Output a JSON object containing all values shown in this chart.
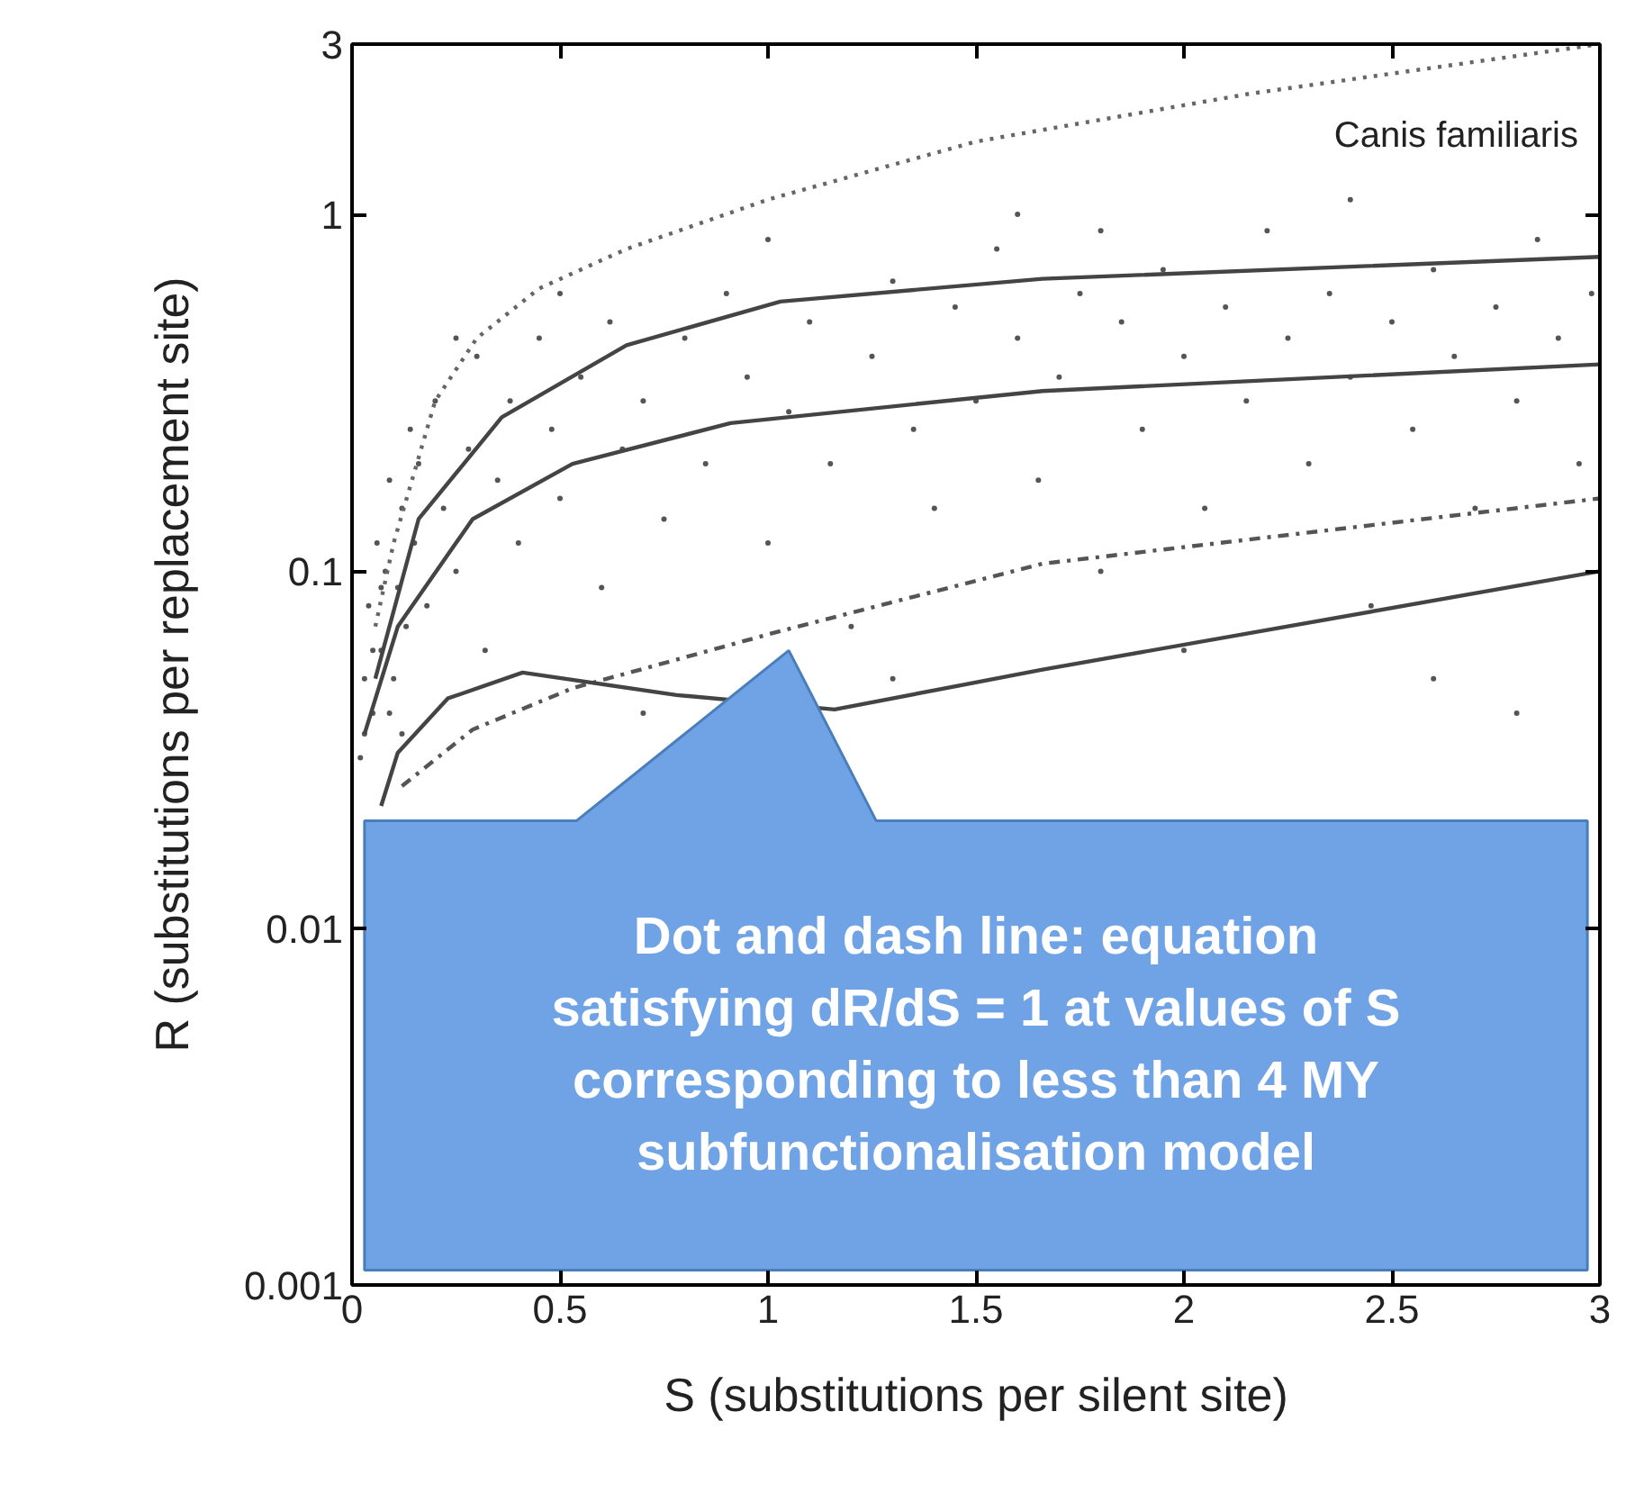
{
  "chart_data": {
    "type": "line",
    "xlabel": "S (substitutions per silent site)",
    "ylabel": "R (substitutions per replacement site)",
    "xlim": [
      0,
      3
    ],
    "ylim": [
      0.001,
      3
    ],
    "xticks": [
      0,
      0.5,
      1,
      1.5,
      2,
      2.5,
      3
    ],
    "yticks": [
      0.001,
      0.01,
      0.1,
      1,
      3
    ],
    "log": "y",
    "grid": false,
    "annotations": [
      "Canis familiaris",
      "Dot and dash line: equation satisfying dR/dS = 1 at values of S corresponding to less than 4 MY subfunctionalisation model"
    ],
    "series": [
      {
        "type": "scatter",
        "marker": "circle",
        "color": "#555555",
        "x": [
          0.02,
          0.03,
          0.04,
          0.05,
          0.06,
          0.07,
          0.08,
          0.09,
          0.1,
          0.11,
          0.12,
          0.13,
          0.14,
          0.15,
          0.03,
          0.05,
          0.07,
          0.09,
          0.12,
          0.16,
          0.18,
          0.2,
          0.22,
          0.25,
          0.28,
          0.3,
          0.32,
          0.35,
          0.38,
          0.4,
          0.45,
          0.48,
          0.5,
          0.55,
          0.6,
          0.62,
          0.65,
          0.7,
          0.75,
          0.8,
          0.85,
          0.9,
          0.95,
          1.0,
          1.05,
          1.1,
          1.15,
          1.2,
          1.25,
          1.3,
          1.35,
          1.4,
          1.45,
          1.5,
          1.55,
          1.6,
          1.65,
          1.7,
          1.75,
          1.8,
          1.85,
          1.9,
          1.95,
          2.0,
          2.05,
          2.1,
          2.15,
          2.2,
          2.25,
          2.3,
          2.35,
          2.4,
          2.45,
          2.5,
          2.55,
          2.6,
          2.65,
          2.7,
          2.75,
          2.8,
          2.85,
          2.9,
          2.95,
          2.98,
          1.3,
          2.0,
          2.6,
          0.7,
          1.8,
          1.0,
          0.5,
          0.25,
          2.4,
          1.6,
          2.8
        ],
        "values": [
          0.03,
          0.05,
          0.08,
          0.04,
          0.12,
          0.06,
          0.1,
          0.18,
          0.05,
          0.09,
          0.15,
          0.07,
          0.25,
          0.12,
          0.035,
          0.06,
          0.09,
          0.04,
          0.035,
          0.2,
          0.08,
          0.3,
          0.15,
          0.1,
          0.22,
          0.4,
          0.06,
          0.18,
          0.3,
          0.12,
          0.45,
          0.25,
          0.16,
          0.35,
          0.09,
          0.5,
          0.22,
          0.3,
          0.14,
          0.45,
          0.2,
          0.6,
          0.35,
          0.12,
          0.28,
          0.5,
          0.2,
          0.07,
          0.4,
          0.65,
          0.25,
          0.15,
          0.55,
          0.3,
          0.8,
          0.45,
          0.18,
          0.35,
          0.6,
          0.1,
          0.5,
          0.25,
          0.7,
          0.4,
          0.15,
          0.55,
          0.3,
          0.9,
          0.45,
          0.2,
          0.6,
          0.35,
          0.08,
          0.5,
          0.25,
          0.7,
          0.4,
          0.15,
          0.55,
          0.3,
          0.85,
          0.45,
          0.2,
          0.6,
          0.05,
          0.06,
          0.05,
          0.04,
          0.9,
          0.85,
          0.6,
          0.45,
          1.1,
          1.0,
          0.04
        ]
      },
      {
        "line_style": "dotted",
        "color": "#666666",
        "x": [
          0.056,
          0.1,
          0.2,
          0.3,
          0.45,
          0.66,
          1.0,
          1.5,
          2.16,
          3.0
        ],
        "values": [
          0.07,
          0.12,
          0.3,
          0.45,
          0.62,
          0.8,
          1.1,
          1.6,
          2.18,
          3.0
        ]
      },
      {
        "line_style": "solid",
        "color": "#444444",
        "x": [
          0.056,
          0.16,
          0.36,
          0.66,
          1.03,
          1.66,
          3.0
        ],
        "values": [
          0.05,
          0.14,
          0.27,
          0.43,
          0.57,
          0.66,
          0.76
        ]
      },
      {
        "line_style": "solid",
        "color": "#444444",
        "x": [
          0.03,
          0.11,
          0.29,
          0.53,
          0.91,
          1.66,
          3.0
        ],
        "values": [
          0.035,
          0.07,
          0.14,
          0.2,
          0.26,
          0.32,
          0.38
        ]
      },
      {
        "line_style": "dashdot",
        "color": "#555555",
        "x": [
          0.12,
          0.29,
          0.53,
          1.03,
          1.66,
          3.0
        ],
        "values": [
          0.025,
          0.036,
          0.047,
          0.068,
          0.105,
          0.16
        ]
      },
      {
        "line_style": "solid",
        "color": "#444444",
        "x": [
          0.07,
          0.11,
          0.23,
          0.41,
          0.78,
          1.16,
          1.66,
          3.0
        ],
        "values": [
          0.022,
          0.031,
          0.044,
          0.052,
          0.045,
          0.041,
          0.053,
          0.1
        ]
      }
    ]
  }
}
